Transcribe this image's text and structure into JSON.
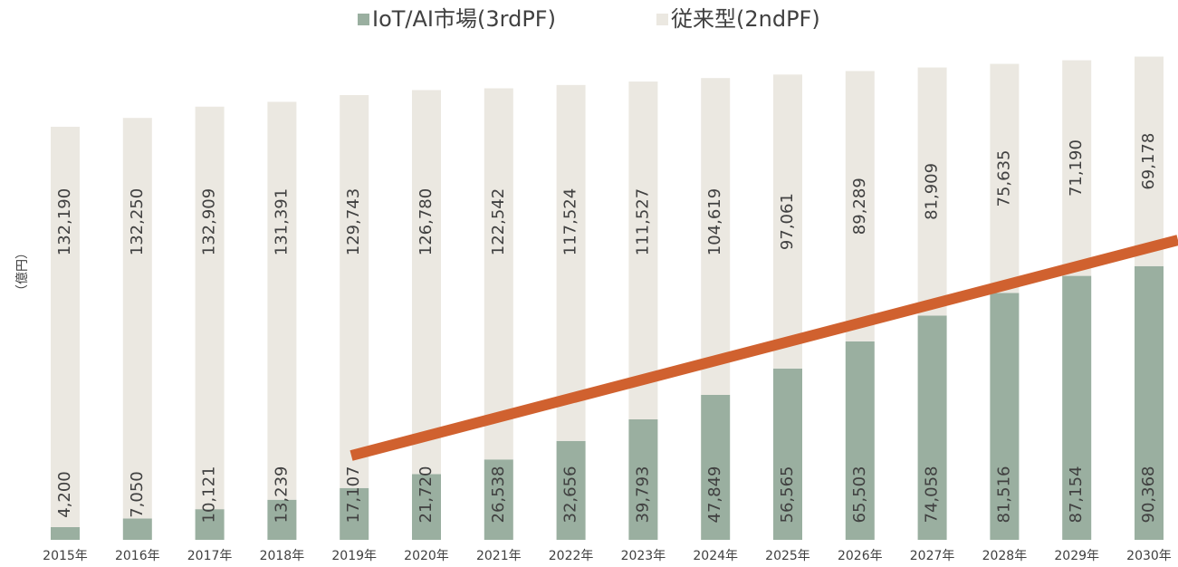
{
  "chart_data": {
    "type": "stacked_bar",
    "y_label": "（億円）",
    "categories": [
      "2015年",
      "2016年",
      "2017年",
      "2018年",
      "2019年",
      "2020年",
      "2021年",
      "2022年",
      "2023年",
      "2024年",
      "2025年",
      "2026年",
      "2027年",
      "2028年",
      "2029年",
      "2030年"
    ],
    "series": [
      {
        "name": "IoT/AI市場(3rdPF)",
        "color": "#9aafa0",
        "values": [
          4200,
          7050,
          10121,
          13239,
          17107,
          21720,
          26538,
          32656,
          39793,
          47849,
          56565,
          65503,
          74058,
          81516,
          87154,
          90368
        ],
        "value_labels": [
          "4,200",
          "7,050",
          "10,121",
          "13,239",
          "17,107",
          "21,720",
          "26,538",
          "32,656",
          "39,793",
          "47,849",
          "56,565",
          "65,503",
          "74,058",
          "81,516",
          "87,154",
          "90,368"
        ]
      },
      {
        "name": "従来型(2ndPF)",
        "color": "#ebe8e1",
        "values": [
          132190,
          132250,
          132909,
          131391,
          129743,
          126780,
          122542,
          117524,
          111527,
          104619,
          97061,
          89289,
          81909,
          75635,
          71190,
          69178
        ],
        "value_labels": [
          "132,190",
          "132,250",
          "132,909",
          "131,391",
          "129,743",
          "126,780",
          "122,542",
          "117,524",
          "111,527",
          "104,619",
          "97,061",
          "89,289",
          "81,909",
          "75,635",
          "71,190",
          "69,178"
        ]
      }
    ],
    "ylim": [
      0,
      160000
    ]
  }
}
